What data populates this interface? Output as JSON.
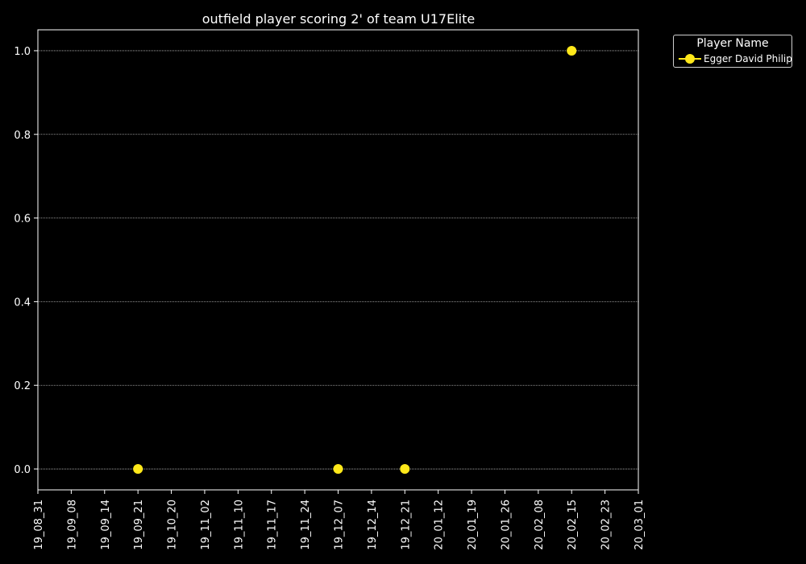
{
  "chart_data": {
    "type": "scatter",
    "title": "outfield player scoring 2' of team U17Elite",
    "xlabel": "",
    "ylabel": "",
    "x_ticks": [
      "19_08_31",
      "19_09_08",
      "19_09_14",
      "19_09_21",
      "19_10_20",
      "19_11_02",
      "19_11_10",
      "19_11_17",
      "19_11_24",
      "19_12_07",
      "19_12_14",
      "19_12_21",
      "20_01_12",
      "20_01_19",
      "20_01_26",
      "20_02_08",
      "20_02_15",
      "20_02_23",
      "20_03_01"
    ],
    "y_ticks": [
      "0.0",
      "0.2",
      "0.4",
      "0.6",
      "0.8",
      "1.0"
    ],
    "ylim": [
      -0.05,
      1.05
    ],
    "grid": "y",
    "legend": {
      "title": "Player Name",
      "placement": "outside-top-right"
    },
    "series": [
      {
        "name": "Egger David Philip",
        "color": "#ffe81a",
        "x": [
          "19_09_21",
          "19_12_07",
          "19_12_21",
          "20_02_15"
        ],
        "y": [
          0,
          0,
          0,
          1
        ]
      }
    ]
  },
  "colors": {
    "background": "#000000",
    "foreground": "#ffffff",
    "grid": "#bbbbbb"
  }
}
